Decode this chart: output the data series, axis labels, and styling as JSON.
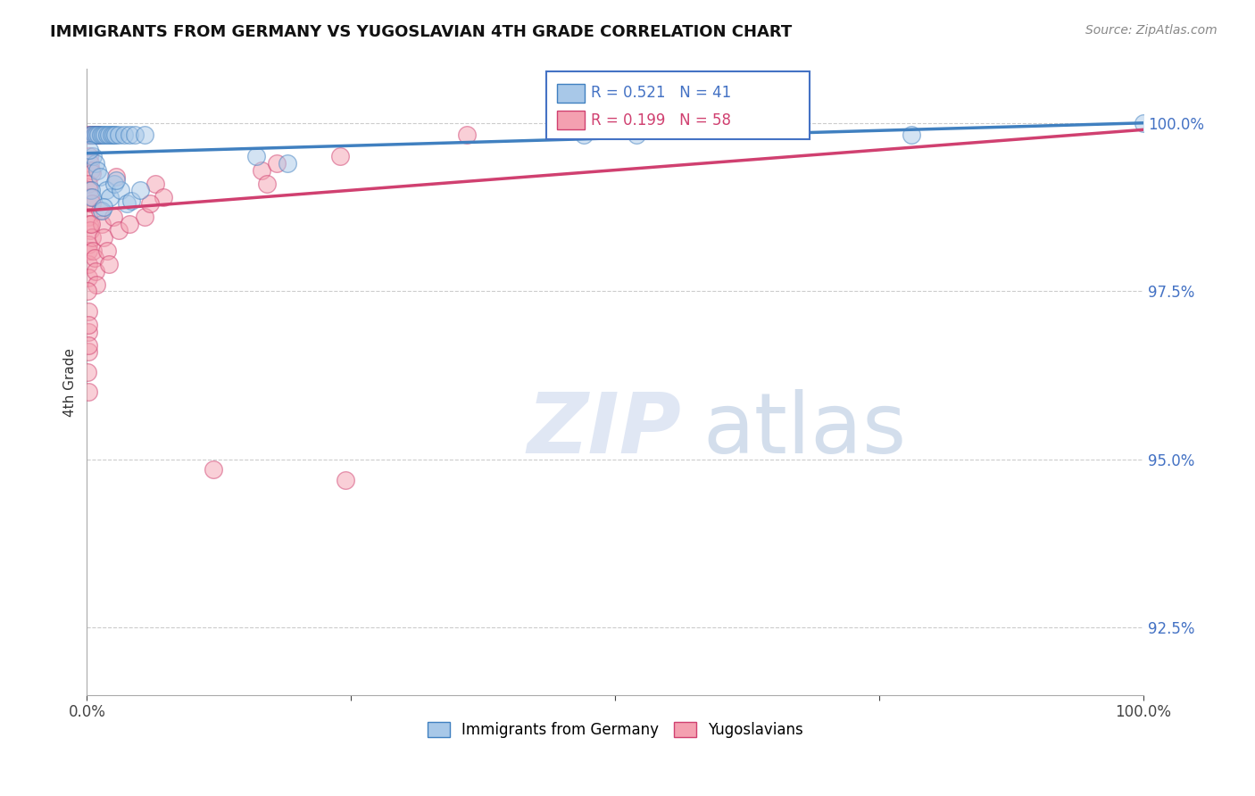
{
  "title": "IMMIGRANTS FROM GERMANY VS YUGOSLAVIAN 4TH GRADE CORRELATION CHART",
  "source": "Source: ZipAtlas.com",
  "ylabel_label": "4th Grade",
  "x_min": 0.0,
  "x_max": 100.0,
  "y_min": 91.5,
  "y_max": 100.8,
  "y_ticks": [
    92.5,
    95.0,
    97.5,
    100.0
  ],
  "legend_label_blue": "Immigrants from Germany",
  "legend_label_pink": "Yugoslavians",
  "R_blue": 0.521,
  "N_blue": 41,
  "R_pink": 0.199,
  "N_pink": 58,
  "blue_color": "#a8c8e8",
  "pink_color": "#f4a0b0",
  "trendline_blue": "#4080c0",
  "trendline_pink": "#d04070",
  "blue_scatter": [
    [
      0.3,
      99.82
    ],
    [
      0.5,
      99.82
    ],
    [
      0.7,
      99.82
    ],
    [
      0.9,
      99.82
    ],
    [
      1.1,
      99.82
    ],
    [
      1.3,
      99.82
    ],
    [
      1.5,
      99.82
    ],
    [
      1.7,
      99.82
    ],
    [
      1.9,
      99.82
    ],
    [
      2.1,
      99.82
    ],
    [
      2.3,
      99.82
    ],
    [
      2.5,
      99.82
    ],
    [
      2.7,
      99.82
    ],
    [
      3.0,
      99.82
    ],
    [
      3.5,
      99.82
    ],
    [
      4.0,
      99.82
    ],
    [
      4.5,
      99.82
    ],
    [
      5.5,
      99.82
    ],
    [
      0.6,
      99.5
    ],
    [
      0.8,
      99.4
    ],
    [
      1.0,
      99.3
    ],
    [
      1.2,
      99.2
    ],
    [
      1.8,
      99.0
    ],
    [
      2.2,
      98.9
    ],
    [
      2.6,
      99.1
    ],
    [
      3.2,
      99.0
    ],
    [
      3.8,
      98.8
    ],
    [
      4.2,
      98.85
    ],
    [
      16.0,
      99.5
    ],
    [
      19.0,
      99.4
    ],
    [
      47.0,
      99.82
    ],
    [
      52.0,
      99.82
    ],
    [
      78.0,
      99.82
    ],
    [
      100.0,
      100.0
    ],
    [
      0.4,
      99.0
    ],
    [
      0.5,
      98.9
    ],
    [
      1.4,
      98.7
    ],
    [
      1.6,
      98.75
    ],
    [
      2.8,
      99.15
    ],
    [
      5.0,
      99.0
    ],
    [
      0.2,
      99.6
    ]
  ],
  "pink_scatter": [
    [
      0.2,
      99.82
    ],
    [
      0.35,
      99.82
    ],
    [
      0.5,
      99.82
    ],
    [
      0.6,
      99.82
    ],
    [
      0.7,
      99.82
    ],
    [
      0.8,
      99.82
    ],
    [
      0.9,
      99.82
    ],
    [
      1.0,
      99.82
    ],
    [
      1.1,
      99.82
    ],
    [
      0.2,
      99.5
    ],
    [
      0.3,
      99.4
    ],
    [
      0.4,
      99.3
    ],
    [
      0.5,
      99.25
    ],
    [
      0.15,
      99.1
    ],
    [
      0.25,
      99.0
    ],
    [
      0.35,
      98.9
    ],
    [
      0.45,
      98.8
    ],
    [
      0.15,
      98.6
    ],
    [
      0.2,
      98.5
    ],
    [
      0.3,
      98.4
    ],
    [
      0.12,
      98.2
    ],
    [
      0.18,
      98.1
    ],
    [
      0.1,
      97.9
    ],
    [
      0.15,
      97.7
    ],
    [
      0.5,
      98.3
    ],
    [
      0.6,
      98.1
    ],
    [
      0.7,
      98.0
    ],
    [
      0.8,
      97.8
    ],
    [
      0.9,
      97.6
    ],
    [
      1.2,
      98.7
    ],
    [
      1.4,
      98.5
    ],
    [
      1.6,
      98.3
    ],
    [
      1.9,
      98.1
    ],
    [
      2.1,
      97.9
    ],
    [
      2.5,
      98.6
    ],
    [
      3.0,
      98.4
    ],
    [
      6.5,
      99.1
    ],
    [
      7.2,
      98.9
    ],
    [
      16.5,
      99.3
    ],
    [
      24.0,
      99.5
    ],
    [
      36.0,
      99.82
    ],
    [
      0.1,
      97.2
    ],
    [
      0.12,
      96.9
    ],
    [
      0.11,
      96.6
    ],
    [
      0.09,
      96.3
    ],
    [
      0.1,
      96.0
    ],
    [
      18.0,
      99.4
    ],
    [
      2.8,
      99.2
    ],
    [
      5.5,
      98.6
    ],
    [
      0.08,
      97.5
    ],
    [
      12.0,
      94.85
    ],
    [
      24.5,
      94.7
    ],
    [
      0.13,
      97.0
    ],
    [
      0.15,
      96.7
    ],
    [
      17.0,
      99.1
    ],
    [
      4.0,
      98.5
    ],
    [
      0.4,
      98.5
    ],
    [
      6.0,
      98.8
    ]
  ],
  "trendline_blue_x0": 0.0,
  "trendline_blue_y0": 99.55,
  "trendline_blue_x1": 100.0,
  "trendline_blue_y1": 100.0,
  "trendline_pink_x0": 0.0,
  "trendline_pink_y0": 98.7,
  "trendline_pink_x1": 100.0,
  "trendline_pink_y1": 99.9
}
